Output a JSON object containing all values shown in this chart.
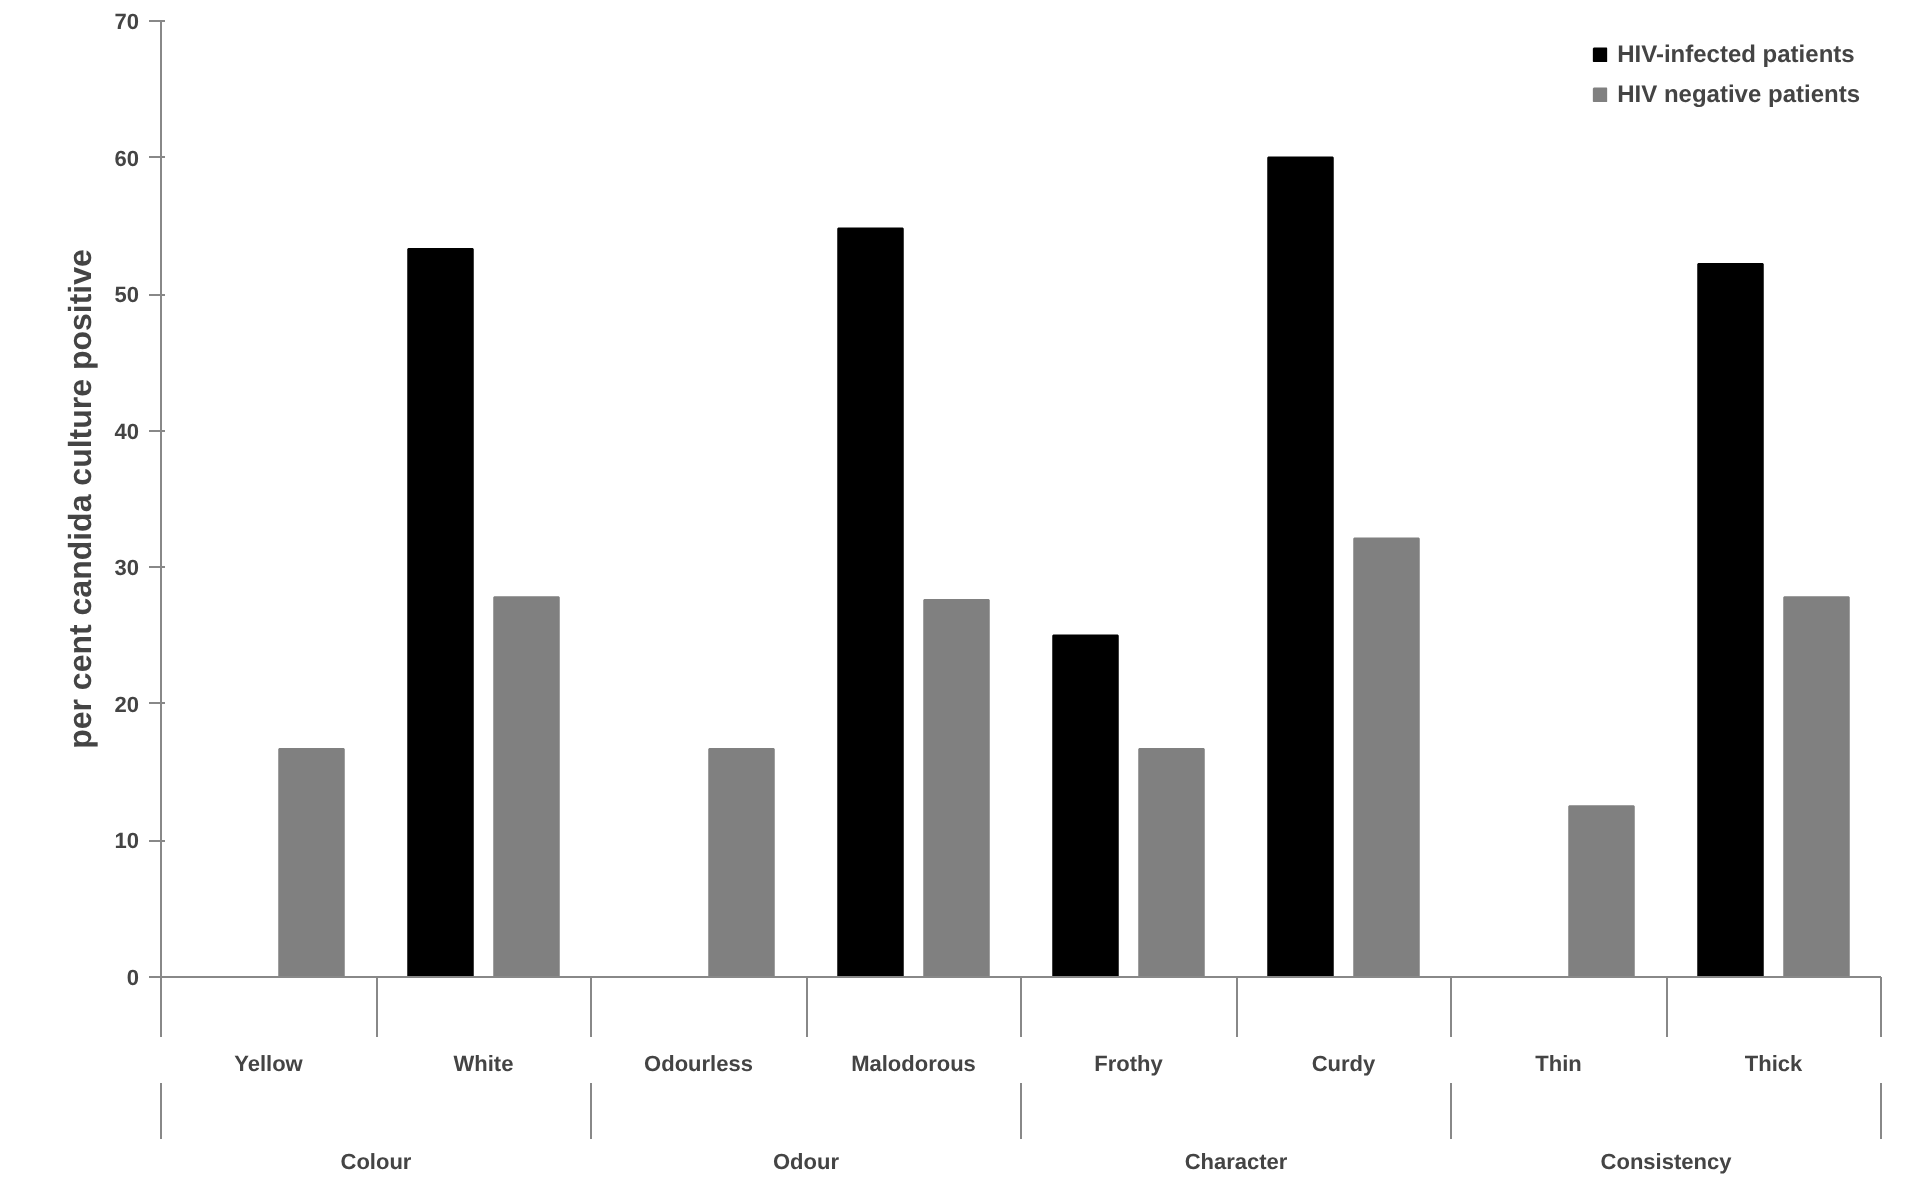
{
  "chart_data": {
    "type": "bar",
    "categories": [
      "Yellow",
      "White",
      "Odourless",
      "Malodorous",
      "Frothy",
      "Curdy",
      "Thin",
      "Thick"
    ],
    "series": [
      {
        "name": "HIV-infected patients",
        "color": "#000000",
        "values": [
          0,
          53.3,
          0,
          54.8,
          25,
          60,
          0,
          52.2
        ]
      },
      {
        "name": "HIV negative patients",
        "color": "#808080",
        "values": [
          16.7,
          27.8,
          16.7,
          27.6,
          16.7,
          32.1,
          12.5,
          27.8
        ]
      }
    ],
    "ylabel": "per cent candida culture positive",
    "annotations": [
      "Colour",
      "Odour",
      "Character",
      "Consistency"
    ],
    "ylim": [
      0,
      70
    ],
    "yticks": [
      0,
      10,
      20,
      30,
      40,
      50,
      60,
      70
    ],
    "grid": false,
    "legend": "top right"
  }
}
